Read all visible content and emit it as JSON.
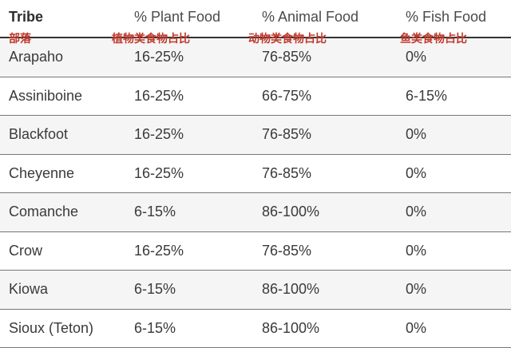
{
  "header": {
    "tribe": "Tribe",
    "plant": "% Plant Food",
    "animal": "% Animal Food",
    "fish": "% Fish Food"
  },
  "chinese_labels": {
    "tribe": "部落",
    "plant": "植物类食物占比",
    "animal": "动物类食物占比",
    "fish": "鱼类食物占比"
  },
  "rows": [
    {
      "tribe": "Arapaho",
      "plant": "16-25%",
      "animal": "76-85%",
      "fish": "0%"
    },
    {
      "tribe": "Assiniboine",
      "plant": "16-25%",
      "animal": "66-75%",
      "fish": "6-15%"
    },
    {
      "tribe": "Blackfoot",
      "plant": "16-25%",
      "animal": "76-85%",
      "fish": "0%"
    },
    {
      "tribe": "Cheyenne",
      "plant": "16-25%",
      "animal": "76-85%",
      "fish": "0%"
    },
    {
      "tribe": "Comanche",
      "plant": "6-15%",
      "animal": "86-100%",
      "fish": "0%"
    },
    {
      "tribe": "Crow",
      "plant": "16-25%",
      "animal": "76-85%",
      "fish": "0%"
    },
    {
      "tribe": "Kiowa",
      "plant": "6-15%",
      "animal": "86-100%",
      "fish": "0%"
    },
    {
      "tribe": "Sioux (Teton)",
      "plant": "6-15%",
      "animal": "86-100%",
      "fish": "0%"
    }
  ],
  "colors": {
    "annotation": "#c0392b",
    "row_stripe": "#f5f5f5",
    "header_rule": "#333333"
  }
}
